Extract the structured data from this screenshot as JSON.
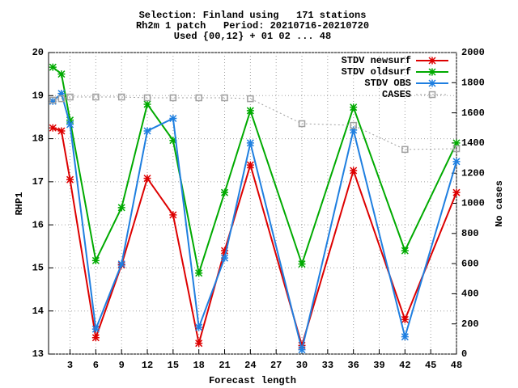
{
  "chart_data": {
    "type": "line",
    "title": [
      "Selection: Finland using   171 stations",
      "Rh2m 1 patch   Period: 20210716-20210720",
      "Used {00,12} + 01 02 ... 48"
    ],
    "xlabel": "Forecast length",
    "ylabel": "RHP1",
    "y2label": "No cases",
    "x": [
      1,
      2,
      3,
      6,
      9,
      12,
      15,
      18,
      21,
      24,
      30,
      36,
      42,
      48
    ],
    "series": [
      {
        "name": "STDV newsurf",
        "color": "#dd0000",
        "marker": "star",
        "values": [
          18.25,
          18.18,
          17.05,
          13.38,
          15.07,
          17.08,
          16.23,
          13.25,
          15.4,
          17.39,
          13.2,
          17.26,
          13.8,
          16.75
        ]
      },
      {
        "name": "STDV oldsurf",
        "color": "#00aa00",
        "marker": "star",
        "values": [
          19.66,
          19.5,
          18.43,
          15.17,
          16.4,
          18.8,
          17.96,
          14.88,
          16.75,
          18.65,
          15.09,
          18.73,
          15.4,
          17.9
        ]
      },
      {
        "name": "STDV OBS",
        "color": "#1f7fe0",
        "marker": "star",
        "values": [
          18.87,
          19.05,
          18.33,
          13.58,
          15.09,
          18.18,
          18.47,
          13.62,
          15.23,
          17.9,
          13.1,
          18.2,
          13.4,
          17.47
        ]
      },
      {
        "name": "CASES",
        "color": "#a0a0a0",
        "marker": "square",
        "dashed": true,
        "axis": "y2",
        "values": [
          1684,
          1694,
          1705,
          1705,
          1705,
          1700,
          1700,
          1700,
          1700,
          1694,
          1528,
          1517,
          1357,
          1362
        ]
      }
    ],
    "xlim": [
      0.5,
      48
    ],
    "xticks": [
      3,
      6,
      9,
      12,
      15,
      18,
      21,
      24,
      27,
      30,
      33,
      36,
      39,
      42,
      45,
      48
    ],
    "ylim": [
      13,
      20
    ],
    "yticks": [
      13,
      14,
      15,
      16,
      17,
      18,
      19,
      20
    ],
    "y2lim": [
      0,
      2000
    ],
    "y2ticks": [
      0,
      200,
      400,
      600,
      800,
      1000,
      1200,
      1400,
      1600,
      1800,
      2000
    ],
    "grid": true,
    "legend": "top-right"
  }
}
